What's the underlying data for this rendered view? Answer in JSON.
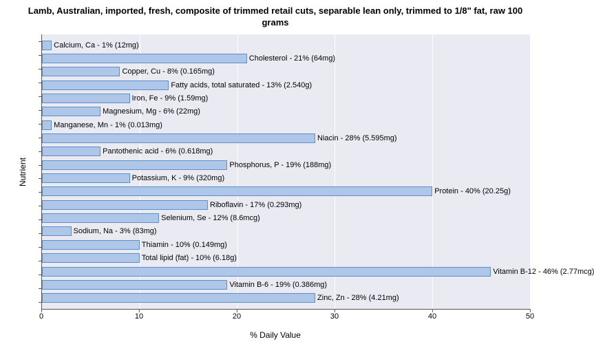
{
  "chart": {
    "type": "bar-horizontal",
    "title": "Lamb, Australian, imported, fresh, composite of trimmed retail cuts, separable lean only, trimmed to 1/8\" fat, raw 100 grams",
    "ylabel": "Nutrient",
    "xlabel": "% Daily Value",
    "xlim": [
      0,
      50
    ],
    "xtick_step": 10,
    "xticks": [
      0,
      10,
      20,
      30,
      40,
      50
    ],
    "bar_color": "#aec7e8",
    "bar_border_color": "#5b8fc9",
    "plot_bg": "#eaeaf2",
    "grid_color": "#ffffff",
    "label_fontsize": 11,
    "title_fontsize": 13,
    "nutrients": [
      {
        "label": "Calcium, Ca - 1% (12mg)",
        "value": 1
      },
      {
        "label": "Cholesterol - 21% (64mg)",
        "value": 21
      },
      {
        "label": "Copper, Cu - 8% (0.165mg)",
        "value": 8
      },
      {
        "label": "Fatty acids, total saturated - 13% (2.540g)",
        "value": 13
      },
      {
        "label": "Iron, Fe - 9% (1.59mg)",
        "value": 9
      },
      {
        "label": "Magnesium, Mg - 6% (22mg)",
        "value": 6
      },
      {
        "label": "Manganese, Mn - 1% (0.013mg)",
        "value": 1
      },
      {
        "label": "Niacin - 28% (5.595mg)",
        "value": 28
      },
      {
        "label": "Pantothenic acid - 6% (0.618mg)",
        "value": 6
      },
      {
        "label": "Phosphorus, P - 19% (188mg)",
        "value": 19
      },
      {
        "label": "Potassium, K - 9% (320mg)",
        "value": 9
      },
      {
        "label": "Protein - 40% (20.25g)",
        "value": 40
      },
      {
        "label": "Riboflavin - 17% (0.293mg)",
        "value": 17
      },
      {
        "label": "Selenium, Se - 12% (8.6mcg)",
        "value": 12
      },
      {
        "label": "Sodium, Na - 3% (83mg)",
        "value": 3
      },
      {
        "label": "Thiamin - 10% (0.149mg)",
        "value": 10
      },
      {
        "label": "Total lipid (fat) - 10% (6.18g)",
        "value": 10
      },
      {
        "label": "Vitamin B-12 - 46% (2.77mcg)",
        "value": 46
      },
      {
        "label": "Vitamin B-6 - 19% (0.386mg)",
        "value": 19
      },
      {
        "label": "Zinc, Zn - 28% (4.21mg)",
        "value": 28
      }
    ]
  }
}
